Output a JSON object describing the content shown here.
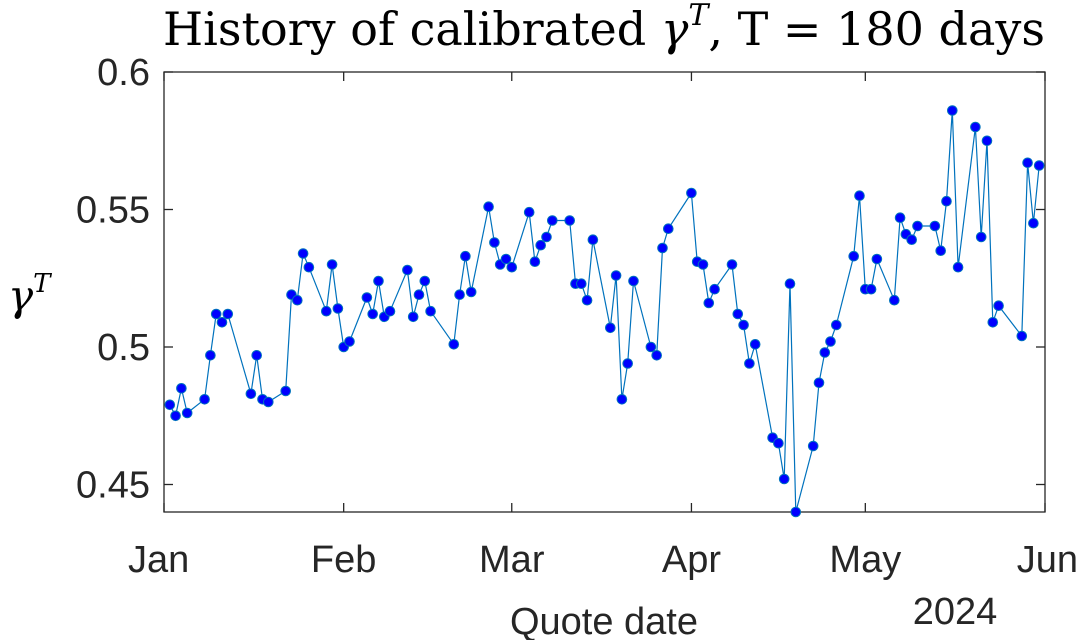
{
  "chart_data": {
    "type": "line",
    "title": "History of calibrated γ^T, T = 180 days",
    "title_parts": {
      "prefix": "History of calibrated ",
      "gamma": "γ",
      "sup": "T",
      "suffix": ", T = 180 days"
    },
    "xlabel": "Quote date",
    "ylabel": "γ^T",
    "ylabel_parts": {
      "base": "γ",
      "sup": "T"
    },
    "year_label": "2024",
    "x_ticks": [
      "Jan",
      "Feb",
      "Mar",
      "Apr",
      "May",
      "Jun"
    ],
    "x_tick_dates": [
      "2024-01-01",
      "2024-02-01",
      "2024-03-01",
      "2024-04-01",
      "2024-05-01",
      "2024-06-01"
    ],
    "xlim": [
      "2024-01-01",
      "2024-06-01"
    ],
    "y_ticks": [
      0.45,
      0.5,
      0.55,
      0.6
    ],
    "y_tick_labels": [
      "0.45",
      "0.5",
      "0.55",
      "0.6"
    ],
    "ylim": [
      0.44,
      0.6
    ],
    "grid": false,
    "legend": false,
    "colors": {
      "line": "#0072BD",
      "marker": "#0000FF",
      "axis": "#262626"
    },
    "series": [
      {
        "x": [
          "2024-01-02",
          "2024-01-03",
          "2024-01-04",
          "2024-01-05",
          "2024-01-08",
          "2024-01-09",
          "2024-01-10",
          "2024-01-11",
          "2024-01-12",
          "2024-01-16",
          "2024-01-17",
          "2024-01-18",
          "2024-01-19",
          "2024-01-22",
          "2024-01-23",
          "2024-01-24",
          "2024-01-25",
          "2024-01-26",
          "2024-01-29",
          "2024-01-30",
          "2024-01-31",
          "2024-02-01",
          "2024-02-02",
          "2024-02-05",
          "2024-02-06",
          "2024-02-07",
          "2024-02-08",
          "2024-02-09",
          "2024-02-12",
          "2024-02-13",
          "2024-02-14",
          "2024-02-15",
          "2024-02-16",
          "2024-02-20",
          "2024-02-21",
          "2024-02-22",
          "2024-02-23",
          "2024-02-26",
          "2024-02-27",
          "2024-02-28",
          "2024-02-29",
          "2024-03-01",
          "2024-03-04",
          "2024-03-05",
          "2024-03-06",
          "2024-03-07",
          "2024-03-08",
          "2024-03-11",
          "2024-03-12",
          "2024-03-13",
          "2024-03-14",
          "2024-03-15",
          "2024-03-18",
          "2024-03-19",
          "2024-03-20",
          "2024-03-21",
          "2024-03-22",
          "2024-03-25",
          "2024-03-26",
          "2024-03-27",
          "2024-03-28",
          "2024-04-01",
          "2024-04-02",
          "2024-04-03",
          "2024-04-04",
          "2024-04-05",
          "2024-04-08",
          "2024-04-09",
          "2024-04-10",
          "2024-04-11",
          "2024-04-12",
          "2024-04-15",
          "2024-04-16",
          "2024-04-17",
          "2024-04-18",
          "2024-04-19",
          "2024-04-22",
          "2024-04-23",
          "2024-04-24",
          "2024-04-25",
          "2024-04-26",
          "2024-04-29",
          "2024-04-30",
          "2024-05-01",
          "2024-05-02",
          "2024-05-03",
          "2024-05-06",
          "2024-05-07",
          "2024-05-08",
          "2024-05-09",
          "2024-05-10",
          "2024-05-13",
          "2024-05-14",
          "2024-05-15",
          "2024-05-16",
          "2024-05-17",
          "2024-05-20",
          "2024-05-21",
          "2024-05-22",
          "2024-05-23",
          "2024-05-24",
          "2024-05-28",
          "2024-05-29",
          "2024-05-30",
          "2024-05-31"
        ],
        "y": [
          0.479,
          0.475,
          0.485,
          0.476,
          0.481,
          0.497,
          0.512,
          0.509,
          0.512,
          0.483,
          0.497,
          0.481,
          0.48,
          0.484,
          0.519,
          0.517,
          0.534,
          0.529,
          0.513,
          0.53,
          0.514,
          0.5,
          0.502,
          0.518,
          0.512,
          0.524,
          0.511,
          0.513,
          0.528,
          0.511,
          0.519,
          0.524,
          0.513,
          0.501,
          0.519,
          0.533,
          0.52,
          0.551,
          0.538,
          0.53,
          0.532,
          0.529,
          0.549,
          0.531,
          0.537,
          0.54,
          0.546,
          0.546,
          0.523,
          0.523,
          0.517,
          0.539,
          0.507,
          0.526,
          0.481,
          0.494,
          0.524,
          0.5,
          0.497,
          0.536,
          0.543,
          0.556,
          0.531,
          0.53,
          0.516,
          0.521,
          0.53,
          0.512,
          0.508,
          0.494,
          0.501,
          0.467,
          0.465,
          0.452,
          0.523,
          0.44,
          0.464,
          0.487,
          0.498,
          0.502,
          0.508,
          0.533,
          0.555,
          0.521,
          0.521,
          0.532,
          0.517,
          0.547,
          0.541,
          0.539,
          0.544,
          0.544,
          0.535,
          0.553,
          0.586,
          0.529,
          0.58,
          0.54,
          0.575,
          0.509,
          0.515,
          0.504,
          0.567,
          0.545,
          0.566
        ]
      }
    ]
  }
}
